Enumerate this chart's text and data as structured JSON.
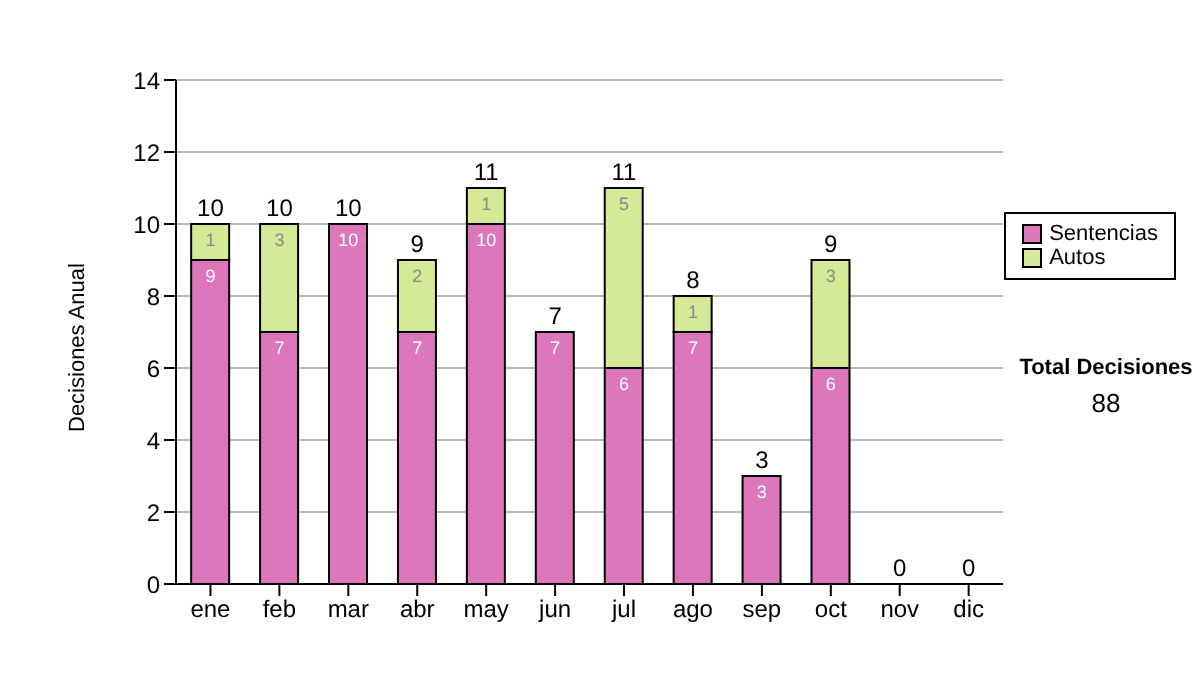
{
  "chart_data": {
    "type": "bar",
    "stacked": true,
    "ylabel": "Decisiones Anual",
    "categories": [
      "ene",
      "feb",
      "mar",
      "abr",
      "may",
      "jun",
      "jul",
      "ago",
      "sep",
      "oct",
      "nov",
      "dic"
    ],
    "series": [
      {
        "name": "Sentencias",
        "color": "#dd77bb",
        "values": [
          9,
          7,
          10,
          7,
          10,
          7,
          6,
          7,
          3,
          6,
          0,
          0
        ],
        "value_labels": [
          "9",
          "7",
          "10",
          "7",
          "10",
          "7",
          "6",
          "7",
          "3",
          "6",
          null,
          null
        ]
      },
      {
        "name": "Autos",
        "color": "#d4ea96",
        "values": [
          1,
          3,
          0,
          2,
          1,
          0,
          5,
          1,
          0,
          3,
          0,
          0
        ],
        "value_labels": [
          "1",
          "3",
          null,
          "2",
          "1",
          null,
          "5",
          "1",
          null,
          "3",
          null,
          null
        ]
      }
    ],
    "totals": [
      "10",
      "10",
      "10",
      "9",
      "11",
      "7",
      "11",
      "8",
      "3",
      "9",
      "0",
      "0"
    ],
    "ylim": [
      0,
      14
    ],
    "yticks": [
      0,
      2,
      4,
      6,
      8,
      10,
      12,
      14
    ],
    "grid": "y",
    "legend": "right",
    "annotations": [
      "Total Decisiones",
      "88"
    ]
  }
}
